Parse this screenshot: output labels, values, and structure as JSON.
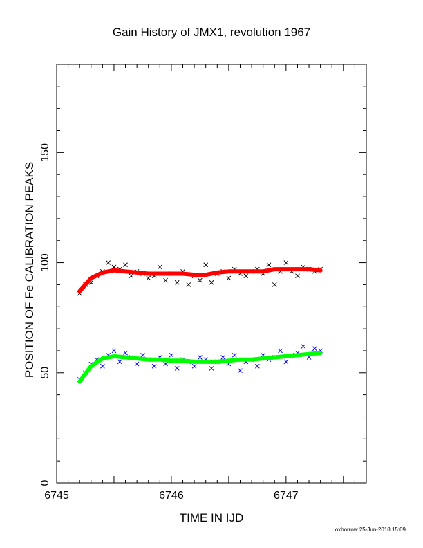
{
  "chart_data": {
    "type": "scatter",
    "title": "Gain History of JMX1, revolution 1967",
    "xlabel": "TIME IN IJD",
    "ylabel": "POSITION OF Fe CALIBRATION PEAKS",
    "xlim": [
      6745,
      6747.7
    ],
    "ylim": [
      0,
      190
    ],
    "x_ticks": [
      6745,
      6746,
      6747
    ],
    "y_ticks": [
      0,
      50,
      100,
      150
    ],
    "x_tick_labels": [
      "6745",
      "6746",
      "6747"
    ],
    "y_tick_labels": [
      "0",
      "50",
      "100",
      "150"
    ],
    "grid": false,
    "legend": "none",
    "series": [
      {
        "kind": "points",
        "marker": "x",
        "color": "#000000",
        "x": [
          6745.2,
          6745.25,
          6745.3,
          6745.35,
          6745.4,
          6745.45,
          6745.5,
          6745.55,
          6745.6,
          6745.65,
          6745.7,
          6745.75,
          6745.8,
          6745.85,
          6745.9,
          6745.95,
          6746.0,
          6746.05,
          6746.1,
          6746.15,
          6746.2,
          6746.25,
          6746.3,
          6746.35,
          6746.4,
          6746.45,
          6746.5,
          6746.55,
          6746.6,
          6746.65,
          6746.7,
          6746.75,
          6746.8,
          6746.85,
          6746.9,
          6746.95,
          6747.0,
          6747.05,
          6747.1,
          6747.15,
          6747.2,
          6747.25,
          6747.3
        ],
        "y": [
          86,
          90,
          91,
          94,
          96,
          100,
          98,
          97,
          99,
          94,
          96,
          95,
          93,
          94,
          98,
          92,
          95,
          91,
          96,
          90,
          94,
          92,
          99,
          91,
          95,
          96,
          93,
          97,
          95,
          94,
          96,
          97,
          95,
          99,
          90,
          96,
          100,
          96,
          94,
          98,
          97,
          96,
          97
        ]
      },
      {
        "kind": "trend",
        "color": "#ff0000",
        "x": [
          6745.2,
          6745.3,
          6745.4,
          6745.5,
          6745.6,
          6745.7,
          6745.8,
          6745.9,
          6746.0,
          6746.1,
          6746.2,
          6746.3,
          6746.4,
          6746.5,
          6746.6,
          6746.7,
          6746.8,
          6746.9,
          6747.0,
          6747.1,
          6747.2,
          6747.3
        ],
        "y": [
          87,
          93,
          95.5,
          96.5,
          96,
          95.5,
          95,
          95,
          95,
          95,
          94.5,
          94.5,
          95.5,
          96,
          96,
          96,
          96,
          97,
          97,
          97,
          97,
          96.5
        ]
      },
      {
        "kind": "points",
        "marker": "x",
        "color": "#0000ff",
        "x": [
          6745.2,
          6745.25,
          6745.3,
          6745.35,
          6745.4,
          6745.45,
          6745.5,
          6745.55,
          6745.6,
          6745.65,
          6745.7,
          6745.75,
          6745.8,
          6745.85,
          6745.9,
          6745.95,
          6746.0,
          6746.05,
          6746.1,
          6746.15,
          6746.2,
          6746.25,
          6746.3,
          6746.35,
          6746.4,
          6746.45,
          6746.5,
          6746.55,
          6746.6,
          6746.65,
          6746.7,
          6746.75,
          6746.8,
          6746.85,
          6746.9,
          6746.95,
          6747.0,
          6747.05,
          6747.1,
          6747.15,
          6747.2,
          6747.25,
          6747.3
        ],
        "y": [
          47,
          50,
          54,
          56,
          53,
          58,
          60,
          55,
          59,
          57,
          54,
          58,
          56,
          53,
          57,
          54,
          58,
          52,
          56,
          55,
          53,
          57,
          56,
          52,
          55,
          57,
          54,
          58,
          51,
          55,
          56,
          53,
          58,
          56,
          57,
          60,
          55,
          58,
          59,
          62,
          57,
          61,
          60
        ]
      },
      {
        "kind": "trend",
        "color": "#00ff00",
        "x": [
          6745.2,
          6745.3,
          6745.4,
          6745.5,
          6745.6,
          6745.7,
          6745.8,
          6745.9,
          6746.0,
          6746.1,
          6746.2,
          6746.3,
          6746.4,
          6746.5,
          6746.6,
          6746.7,
          6746.8,
          6746.9,
          6747.0,
          6747.1,
          6747.2,
          6747.3
        ],
        "y": [
          46,
          53,
          56.5,
          57.5,
          57,
          56.5,
          56,
          56,
          55.5,
          55.5,
          55,
          55,
          55,
          55.5,
          56,
          56,
          56.5,
          57,
          57.5,
          58,
          58.5,
          59
        ]
      }
    ],
    "footer": "oxborrow 25-Jun-2018 15:09"
  }
}
